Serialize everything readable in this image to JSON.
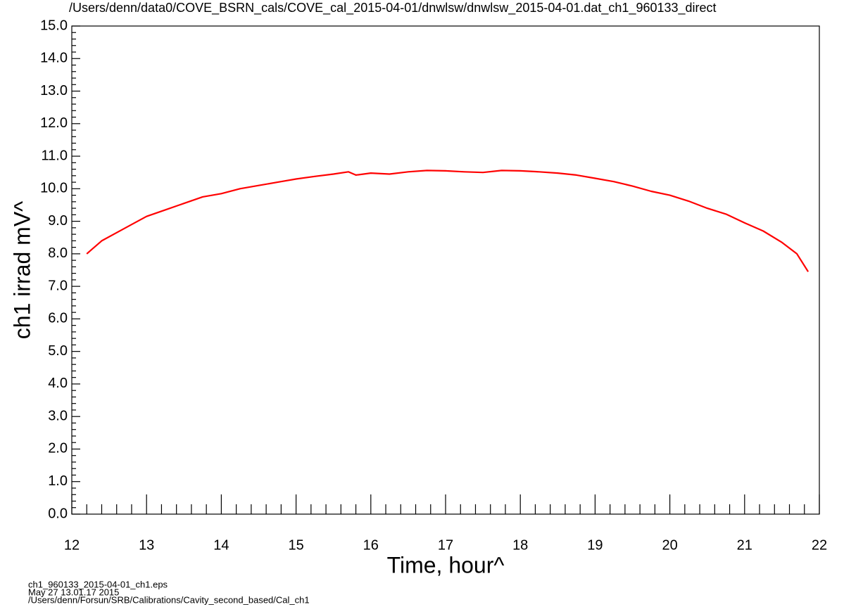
{
  "chart_data": {
    "type": "line",
    "title": "/Users/denn/data0/COVE_BSRN_cals/COVE_cal_2015-04-01/dnwlsw/dnwlsw_2015-04-01.dat_ch1_960133_direct",
    "x_label": "Time, hour^",
    "y_label": "ch1 irrad mV^",
    "footer": [
      "ch1_960133_2015-04-01_ch1.eps",
      "May 27 13.01.17 2015",
      "/Users/denn/Forsun/SRB/Calibrations/Cavity_second_based/Cal_ch1"
    ],
    "x": [
      12.2,
      12.4,
      12.6,
      12.8,
      13.0,
      13.25,
      13.5,
      13.75,
      14.0,
      14.25,
      14.5,
      14.75,
      15.0,
      15.25,
      15.5,
      15.7,
      15.8,
      16.0,
      16.25,
      16.5,
      16.75,
      17.0,
      17.25,
      17.5,
      17.75,
      18.0,
      18.25,
      18.5,
      18.75,
      19.0,
      19.25,
      19.5,
      19.75,
      20.0,
      20.25,
      20.5,
      20.75,
      21.0,
      21.25,
      21.5,
      21.7,
      21.85
    ],
    "values": [
      8.0,
      8.4,
      8.65,
      8.9,
      9.15,
      9.35,
      9.55,
      9.75,
      9.85,
      10.0,
      10.1,
      10.2,
      10.3,
      10.38,
      10.45,
      10.52,
      10.42,
      10.48,
      10.45,
      10.52,
      10.56,
      10.55,
      10.52,
      10.5,
      10.56,
      10.55,
      10.52,
      10.48,
      10.42,
      10.32,
      10.22,
      10.08,
      9.92,
      9.8,
      9.62,
      9.4,
      9.22,
      8.95,
      8.7,
      8.35,
      8.0,
      7.45
    ],
    "color": "#ff0000",
    "xlim": [
      12,
      22
    ],
    "xticks": [
      12,
      13,
      14,
      15,
      16,
      17,
      18,
      19,
      20,
      21,
      22
    ],
    "ylim": [
      0,
      15
    ],
    "yticks": [
      {
        "value": 0,
        "label": "0.0"
      },
      {
        "value": 1,
        "label": "1.0"
      },
      {
        "value": 2,
        "label": "2.0"
      },
      {
        "value": 3,
        "label": "3.0"
      },
      {
        "value": 4,
        "label": "4.0"
      },
      {
        "value": 5,
        "label": "5.0"
      },
      {
        "value": 6,
        "label": "6.0"
      },
      {
        "value": 7,
        "label": "7.0"
      },
      {
        "value": 8,
        "label": "8.0"
      },
      {
        "value": 9,
        "label": "9.0"
      },
      {
        "value": 10,
        "label": "10.0"
      },
      {
        "value": 11,
        "label": "11.0"
      },
      {
        "value": 12,
        "label": "12.0"
      },
      {
        "value": 13,
        "label": "13.0"
      },
      {
        "value": 14,
        "label": "14.0"
      },
      {
        "value": 15,
        "label": "15.0"
      }
    ]
  }
}
